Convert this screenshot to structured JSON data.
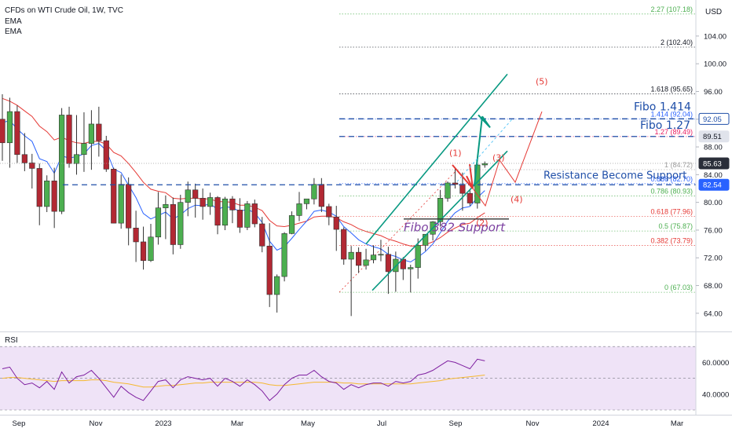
{
  "header": {
    "title": "CFDs on WTI Crude Oil, 1W, TVC",
    "indicators": [
      "EMA",
      "EMA"
    ],
    "currency": "USD"
  },
  "colors": {
    "bull": "#4caf50",
    "bear": "#b22833",
    "ema_fast": "#2962ff",
    "ema_slow": "#e53935",
    "rsi_line": "#7e1fa0",
    "rsi_ma": "#f5b830",
    "rsi_bg": "#efe3f7",
    "channel": "#089981",
    "level_blue": "#1e4ea8",
    "annotation_purple": "#7b3fa0"
  },
  "chart_data": {
    "type": "candlestick",
    "price_axis": {
      "ticks": [
        "104.00",
        "100.00",
        "96.00",
        "92.00",
        "88.00",
        "84.00",
        "80.00",
        "76.00",
        "72.00",
        "68.00",
        "64.00"
      ],
      "ylim": [
        61.6,
        109.2
      ]
    },
    "rsi_axis": {
      "ticks": [
        "60.0000",
        "40.0000"
      ],
      "ylim": [
        30,
        78
      ]
    },
    "x_axis": {
      "ticks": [
        "Sep",
        "Nov",
        "2023",
        "Mar",
        "May",
        "Jul",
        "Sep",
        "Nov",
        "2024",
        "Mar"
      ]
    },
    "price_badges": [
      {
        "value": "92.05",
        "style": "blue-outline"
      },
      {
        "value": "89.51",
        "style": "gray"
      },
      {
        "value": "85.63",
        "style": "dark"
      },
      {
        "value": "82.54",
        "style": "blue"
      }
    ],
    "fib_levels": [
      {
        "label": "2.27 (107.18)",
        "value": 107.18,
        "color": "#4caf50"
      },
      {
        "label": "2 (102.40)",
        "value": 102.4,
        "color": "#131722"
      },
      {
        "label": "1.618 (95.65)",
        "value": 95.65,
        "color": "#131722"
      },
      {
        "label": "1.414 (92.04)",
        "value": 92.04,
        "color": "#2962ff"
      },
      {
        "label": "1.27 (89.49)",
        "value": 89.49,
        "color": "#e91e63"
      },
      {
        "label": "1 (84.72)",
        "value": 84.72,
        "color": "#9e9e9e"
      },
      {
        "label": "0.886 (82.70)",
        "value": 82.7,
        "color": "#2962ff"
      },
      {
        "label": "0.786 (80.93)",
        "value": 80.93,
        "color": "#4caf50"
      },
      {
        "label": "0.618 (77.96)",
        "value": 77.96,
        "color": "#e53935"
      },
      {
        "label": "0.5 (75.87)",
        "value": 75.87,
        "color": "#4caf50"
      },
      {
        "label": "0.382 (73.79)",
        "value": 73.79,
        "color": "#e53935"
      },
      {
        "label": "0 (67.03)",
        "value": 67.03,
        "color": "#4caf50"
      }
    ],
    "annotations": {
      "fibo_1414": "Fibo 1.414",
      "fibo_127": "Fibo 1.27",
      "resistance": "Resistance Become Support",
      "fibo_382": "Fibo 382 Support",
      "waves": [
        "(1)",
        "(2)",
        "(3)",
        "(4)",
        "(5)"
      ]
    },
    "rsi_label": "RSI",
    "candles": [
      {
        "o": 92.0,
        "h": 95.6,
        "l": 86.0,
        "c": 88.6
      },
      {
        "o": 88.6,
        "h": 95.1,
        "l": 85.0,
        "c": 93.1
      },
      {
        "o": 93.1,
        "h": 94.0,
        "l": 85.7,
        "c": 86.9
      },
      {
        "o": 86.9,
        "h": 90.0,
        "l": 84.5,
        "c": 85.7
      },
      {
        "o": 85.7,
        "h": 87.0,
        "l": 82.0,
        "c": 84.9
      },
      {
        "o": 84.9,
        "h": 85.6,
        "l": 76.7,
        "c": 79.4
      },
      {
        "o": 79.4,
        "h": 83.9,
        "l": 78.6,
        "c": 83.1
      },
      {
        "o": 83.1,
        "h": 85.0,
        "l": 76.3,
        "c": 78.7
      },
      {
        "o": 78.7,
        "h": 93.6,
        "l": 78.3,
        "c": 92.6
      },
      {
        "o": 92.6,
        "h": 93.8,
        "l": 85.0,
        "c": 85.6
      },
      {
        "o": 85.6,
        "h": 92.6,
        "l": 84.0,
        "c": 86.9
      },
      {
        "o": 86.9,
        "h": 93.0,
        "l": 84.4,
        "c": 88.5
      },
      {
        "o": 88.5,
        "h": 93.3,
        "l": 84.7,
        "c": 91.3
      },
      {
        "o": 91.3,
        "h": 93.8,
        "l": 86.6,
        "c": 88.9
      },
      {
        "o": 88.9,
        "h": 89.6,
        "l": 84.4,
        "c": 84.8
      },
      {
        "o": 84.8,
        "h": 85.0,
        "l": 77.0,
        "c": 77.0
      },
      {
        "o": 77.0,
        "h": 84.0,
        "l": 76.2,
        "c": 82.6
      },
      {
        "o": 82.6,
        "h": 83.6,
        "l": 73.8,
        "c": 76.3
      },
      {
        "o": 76.3,
        "h": 78.8,
        "l": 71.4,
        "c": 74.3
      },
      {
        "o": 74.3,
        "h": 76.5,
        "l": 70.3,
        "c": 71.6
      },
      {
        "o": 71.6,
        "h": 76.9,
        "l": 71.4,
        "c": 75.0
      },
      {
        "o": 75.0,
        "h": 81.5,
        "l": 73.9,
        "c": 79.2
      },
      {
        "o": 79.2,
        "h": 81.0,
        "l": 74.7,
        "c": 79.7
      },
      {
        "o": 79.7,
        "h": 80.7,
        "l": 72.5,
        "c": 73.9
      },
      {
        "o": 73.9,
        "h": 81.1,
        "l": 73.3,
        "c": 80.0
      },
      {
        "o": 80.0,
        "h": 83.0,
        "l": 78.0,
        "c": 81.8
      },
      {
        "o": 81.8,
        "h": 82.7,
        "l": 77.8,
        "c": 80.6
      },
      {
        "o": 80.6,
        "h": 82.0,
        "l": 77.5,
        "c": 79.4
      },
      {
        "o": 79.4,
        "h": 81.4,
        "l": 78.2,
        "c": 80.7
      },
      {
        "o": 80.7,
        "h": 80.9,
        "l": 75.4,
        "c": 76.7
      },
      {
        "o": 76.7,
        "h": 80.8,
        "l": 76.0,
        "c": 80.5
      },
      {
        "o": 80.5,
        "h": 80.9,
        "l": 77.0,
        "c": 78.9
      },
      {
        "o": 78.9,
        "h": 80.6,
        "l": 75.6,
        "c": 76.4
      },
      {
        "o": 76.4,
        "h": 80.2,
        "l": 76.0,
        "c": 79.8
      },
      {
        "o": 79.8,
        "h": 80.4,
        "l": 76.4,
        "c": 76.9
      },
      {
        "o": 76.9,
        "h": 77.9,
        "l": 72.8,
        "c": 73.7
      },
      {
        "o": 73.7,
        "h": 77.0,
        "l": 64.9,
        "c": 66.7
      },
      {
        "o": 66.7,
        "h": 69.6,
        "l": 64.1,
        "c": 69.3
      },
      {
        "o": 69.3,
        "h": 75.7,
        "l": 68.6,
        "c": 75.5
      },
      {
        "o": 75.5,
        "h": 78.7,
        "l": 75.4,
        "c": 78.1
      },
      {
        "o": 78.1,
        "h": 81.5,
        "l": 77.3,
        "c": 79.8
      },
      {
        "o": 79.8,
        "h": 80.2,
        "l": 79.0,
        "c": 80.5
      },
      {
        "o": 80.5,
        "h": 83.5,
        "l": 79.7,
        "c": 82.6
      },
      {
        "o": 82.6,
        "h": 83.5,
        "l": 78.6,
        "c": 79.4
      },
      {
        "o": 79.4,
        "h": 79.8,
        "l": 76.7,
        "c": 77.9
      },
      {
        "o": 77.9,
        "h": 79.5,
        "l": 73.0,
        "c": 76.1
      },
      {
        "o": 76.1,
        "h": 76.4,
        "l": 71.0,
        "c": 71.8
      },
      {
        "o": 71.8,
        "h": 73.7,
        "l": 63.6,
        "c": 72.8
      },
      {
        "o": 72.8,
        "h": 73.5,
        "l": 69.8,
        "c": 70.9
      },
      {
        "o": 70.9,
        "h": 73.3,
        "l": 70.3,
        "c": 71.7
      },
      {
        "o": 71.7,
        "h": 73.8,
        "l": 71.2,
        "c": 72.4
      },
      {
        "o": 72.4,
        "h": 74.6,
        "l": 71.5,
        "c": 72.5
      },
      {
        "o": 72.5,
        "h": 73.6,
        "l": 66.8,
        "c": 70.0
      },
      {
        "o": 70.0,
        "h": 72.9,
        "l": 67.1,
        "c": 71.8
      },
      {
        "o": 71.8,
        "h": 72.1,
        "l": 68.8,
        "c": 70.4
      },
      {
        "o": 70.4,
        "h": 71.0,
        "l": 67.0,
        "c": 70.6
      },
      {
        "o": 70.6,
        "h": 74.8,
        "l": 69.0,
        "c": 73.8
      },
      {
        "o": 73.8,
        "h": 75.3,
        "l": 73.0,
        "c": 75.4
      },
      {
        "o": 75.4,
        "h": 77.3,
        "l": 74.5,
        "c": 77.2
      },
      {
        "o": 77.2,
        "h": 81.8,
        "l": 76.5,
        "c": 80.6
      },
      {
        "o": 80.6,
        "h": 83.0,
        "l": 80.1,
        "c": 82.8
      },
      {
        "o": 82.8,
        "h": 84.9,
        "l": 82.0,
        "c": 82.6
      },
      {
        "o": 82.6,
        "h": 84.3,
        "l": 78.8,
        "c": 81.3
      },
      {
        "o": 81.3,
        "h": 81.9,
        "l": 79.5,
        "c": 79.9
      },
      {
        "o": 79.9,
        "h": 85.6,
        "l": 79.1,
        "c": 85.4
      },
      {
        "o": 85.4,
        "h": 85.9,
        "l": 85.0,
        "c": 85.6
      }
    ],
    "ema_fast": [
      91.5,
      91.8,
      90.6,
      89.6,
      88.8,
      86.3,
      85.9,
      84.2,
      86.7,
      86.4,
      86.6,
      87.0,
      88.2,
      88.5,
      87.5,
      84.8,
      84.3,
      82.5,
      80.7,
      78.4,
      77.6,
      78.1,
      78.6,
      77.6,
      78.2,
      79.1,
      79.6,
      79.5,
      79.8,
      79.0,
      79.4,
      79.2,
      78.7,
      79.0,
      78.5,
      77.1,
      74.4,
      73.1,
      73.6,
      74.8,
      76.1,
      77.3,
      78.7,
      78.9,
      78.6,
      78.0,
      76.5,
      75.6,
      74.6,
      74.0,
      73.6,
      73.3,
      72.5,
      72.2,
      71.7,
      71.4,
      72.1,
      72.9,
      74.0,
      75.6,
      77.3,
      78.5,
      79.2,
      79.4,
      80.7,
      81.7
    ],
    "ema_slow": [
      95.0,
      94.6,
      94.0,
      93.2,
      92.4,
      91.0,
      90.2,
      89.0,
      89.4,
      88.9,
      88.6,
      88.5,
      88.8,
      88.8,
      88.4,
      87.2,
      86.7,
      85.6,
      84.3,
      82.9,
      81.9,
      81.6,
      81.4,
      80.6,
      80.5,
      80.6,
      80.6,
      80.5,
      80.5,
      80.1,
      80.1,
      80.0,
      79.6,
      79.6,
      79.3,
      78.8,
      77.4,
      76.6,
      76.5,
      76.7,
      77.0,
      77.3,
      77.9,
      78.0,
      78.0,
      77.8,
      77.2,
      76.8,
      76.2,
      75.8,
      75.5,
      75.2,
      74.7,
      74.4,
      74.0,
      73.7,
      73.7,
      73.9,
      74.3,
      74.9,
      75.7,
      76.3,
      76.8,
      77.0,
      77.8,
      78.5
    ],
    "rsi": [
      56,
      57,
      50,
      46,
      47,
      44,
      48,
      43,
      54,
      47,
      51,
      52,
      55,
      50,
      44,
      38,
      45,
      41,
      38,
      36,
      42,
      48,
      49,
      44,
      49,
      51,
      50,
      49,
      50,
      45,
      50,
      48,
      45,
      49,
      46,
      42,
      36,
      40,
      46,
      50,
      52,
      52,
      55,
      51,
      48,
      47,
      43,
      46,
      44,
      46,
      47,
      47,
      45,
      48,
      47,
      48,
      52,
      53,
      55,
      58,
      61,
      60,
      58,
      56,
      62,
      61
    ],
    "rsi_ma": [
      50,
      50.5,
      50.5,
      50,
      49.5,
      49,
      48.5,
      48,
      48.5,
      48.5,
      48.5,
      48.5,
      49,
      49,
      48.5,
      47.5,
      47,
      46.5,
      45.5,
      44.5,
      44.5,
      45,
      45.5,
      45.5,
      46,
      46.5,
      47,
      47,
      47.5,
      47.5,
      47.5,
      47.5,
      47.5,
      47.5,
      47.5,
      47,
      46,
      45.5,
      45.5,
      46,
      46.5,
      47,
      47.5,
      47.5,
      47.5,
      47.5,
      47,
      47,
      46.5,
      46.5,
      46.5,
      46.5,
      46.5,
      46.5,
      46.5,
      46.5,
      47,
      47.5,
      48,
      48.5,
      49.5,
      50,
      50.5,
      51,
      51.5,
      52
    ]
  }
}
